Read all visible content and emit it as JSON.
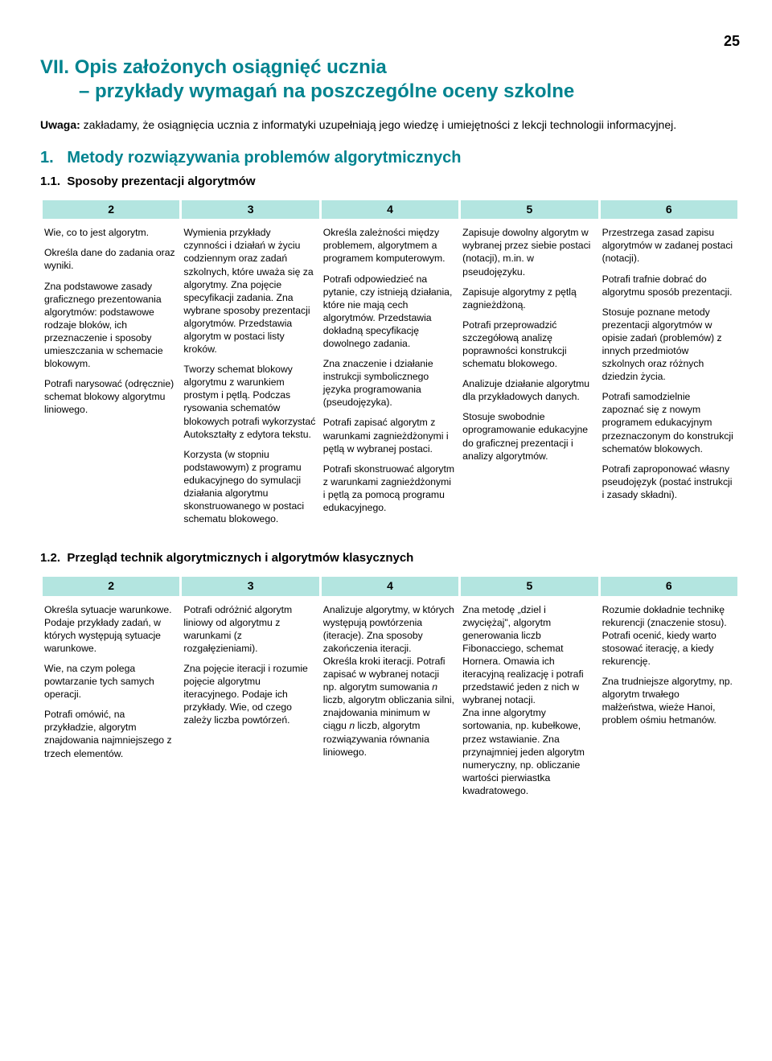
{
  "page_number": "25",
  "header": {
    "prefix": "VII.",
    "line1": "Opis założonych osiągnięć ucznia",
    "line2": "– przykłady wymagań na poszczególne oceny szkolne"
  },
  "uwaga_label": "Uwaga:",
  "uwaga_text": " zakładamy, że osiągnięcia ucznia z informatyki uzupełniają jego wiedzę i umiejętności z lekcji technologii informacyjnej.",
  "section1": {
    "num": "1.",
    "title": "Metody rozwiązywania problemów algorytmicznych",
    "sub1": {
      "num": "1.1.",
      "title": "Sposoby prezentacji algorytmów"
    },
    "sub2": {
      "num": "1.2.",
      "title": "Przegląd technik algorytmicznych i algorytmów klasycznych"
    }
  },
  "col_headers": [
    "2",
    "3",
    "4",
    "5",
    "6"
  ],
  "table1": {
    "c1": [
      "Wie, co to jest algorytm.",
      "Określa dane do zadania oraz wyniki.",
      "Zna podstawowe zasady graficznego prezentowania algorytmów: podstawowe rodzaje bloków, ich przeznaczenie i sposoby umieszczania w schemacie blokowym.",
      "Potrafi narysować (odręcznie) schemat blokowy algorytmu liniowego."
    ],
    "c2": [
      "Wymienia przykłady czynności i działań w życiu codziennym oraz zadań szkolnych, które uważa się za algorytmy. Zna pojęcie specyfikacji zadania. Zna wybrane sposoby prezentacji algorytmów. Przedstawia algorytm w postaci listy kroków.",
      "Tworzy schemat blokowy algorytmu z warunkiem prostym i pętlą. Podczas rysowania schematów blokowych potrafi wykorzystać Autokształty z edytora tekstu.",
      "Korzysta (w stopniu podstawowym) z programu edukacyjnego do symulacji działania algorytmu skonstruowanego w postaci schematu blokowego."
    ],
    "c3": [
      "Określa zależności między problemem, algorytmem a programem komputerowym.",
      "Potrafi odpowiedzieć na pytanie, czy istnieją działania, które nie mają cech algorytmów. Przedstawia dokładną specyfikację dowolnego zadania.",
      "Zna znaczenie i działanie instrukcji symbolicznego języka programowania (pseudojęzyka).",
      "Potrafi zapisać algorytm z warunkami zagnieżdżonymi i pętlą w wybranej postaci.",
      "Potrafi skonstruować algorytm z warunkami zagnieżdżonymi i pętlą za pomocą programu edukacyjnego."
    ],
    "c4": [
      "Zapisuje dowolny algorytm w wybranej przez siebie postaci (notacji), m.in. w pseudojęzyku.",
      "Zapisuje algorytmy z pętlą zagnieżdżoną.",
      "Potrafi przeprowadzić szczegółową analizę poprawności konstrukcji schematu blokowego.",
      "Analizuje działanie algorytmu dla przykładowych danych.",
      "Stosuje swobodnie oprogramowanie edukacyjne do graficznej prezentacji i analizy algorytmów."
    ],
    "c5": [
      "Przestrzega zasad zapisu algorytmów w zadanej postaci (notacji).",
      "Potrafi trafnie dobrać do algorytmu sposób prezentacji.",
      "Stosuje poznane metody prezentacji algorytmów w opisie zadań (problemów) z innych przedmiotów szkolnych oraz różnych dziedzin życia.",
      "Potrafi samodzielnie zapoznać się z nowym programem edukacyjnym przeznaczonym do konstrukcji schematów blokowych.",
      "Potrafi zaproponować własny pseudojęzyk (postać instrukcji i zasady składni)."
    ]
  },
  "table2": {
    "c1": [
      "Określa sytuacje warunkowe. Podaje przykłady zadań, w których występują sytuacje warunkowe.",
      "Wie, na czym polega powtarzanie tych samych operacji.",
      "Potrafi omówić, na przykładzie, algorytm znajdowania najmniejszego z trzech elementów."
    ],
    "c2": [
      "Potrafi odróżnić algorytm liniowy od algorytmu z warunkami (z rozgałęzieniami).",
      "Zna pojęcie iteracji i rozumie pojęcie algorytmu iteracyjnego. Podaje ich przykłady. Wie, od czego zależy liczba powtórzeń."
    ],
    "c3_1a": "Analizuje algorytmy, w których występują powtórzenia (iteracje). Zna sposoby zakończenia iteracji.",
    "c3_1b": "Określa kroki iteracji. Potrafi zapisać w wybranej notacji np. algorytm sumowania ",
    "c3_1c": " liczb, algorytm obliczania silni, znajdowania minimum w ciągu ",
    "c3_1d": " liczb, algorytm rozwiązywania równania liniowego.",
    "n": "n",
    "c4_1a": "Zna metodę „dziel i zwyciężaj\", algorytm generowania liczb Fibonacciego, schemat Hornera. Omawia ich iteracyjną realizację i potrafi przedstawić jeden z nich w wybranej notacji.",
    "c4_1b": "Zna inne algorytmy sortowania, np. kubełkowe, przez wstawianie. Zna przynajmniej jeden algorytm numeryczny, np. obliczanie wartości pierwiastka kwadratowego.",
    "c5": [
      "Rozumie dokładnie technikę rekurencji (znaczenie stosu). Potrafi ocenić, kiedy warto stosować iterację, a kiedy rekurencję.",
      "Zna trudniejsze algorytmy, np. algorytm trwałego małżeństwa, wieże Hanoi, problem ośmiu hetmanów."
    ]
  },
  "style": {
    "teal": "#00838f",
    "header_bg": "#b3e5e0",
    "body_font_size": 12.2,
    "heading_font_size": 24
  }
}
